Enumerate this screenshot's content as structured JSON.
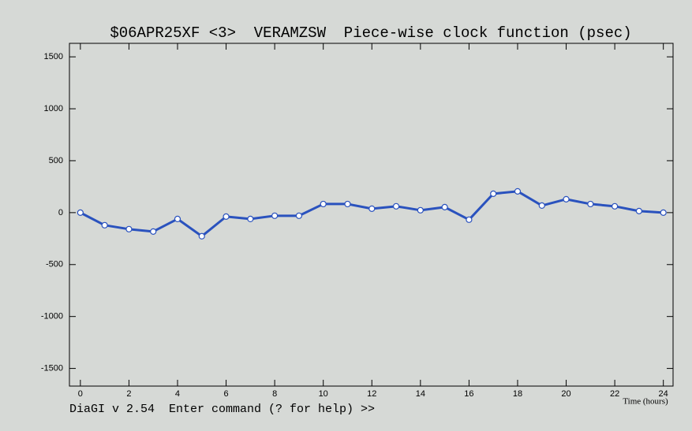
{
  "chart_data": {
    "type": "line",
    "title": "$06APR25XF <3>  VERAMZSW  Piece-wise clock function (psec)",
    "xlabel": "Time (hours)",
    "x": [
      0,
      1,
      2,
      3,
      4,
      5,
      6,
      7,
      8,
      9,
      10,
      11,
      12,
      13,
      14,
      15,
      16,
      17,
      18,
      19,
      20,
      21,
      22,
      23,
      24
    ],
    "values": [
      0,
      -121,
      -159,
      -182,
      -61,
      -227,
      -38,
      -61,
      -30,
      -30,
      83,
      83,
      38,
      61,
      23,
      53,
      -68,
      182,
      205,
      68,
      129,
      83,
      61,
      15,
      0
    ],
    "color": "#2a52be",
    "xlim": [
      -0.45,
      24.4
    ],
    "ylim": [
      -1670,
      1630
    ],
    "xticks": [
      0,
      2,
      4,
      6,
      8,
      10,
      12,
      14,
      16,
      18,
      20,
      22,
      24
    ],
    "yticks": [
      -1500,
      -1000,
      -500,
      0,
      500,
      1000,
      1500
    ]
  },
  "command_prompt": "DiaGI v 2.54  Enter command (? for help) >>"
}
